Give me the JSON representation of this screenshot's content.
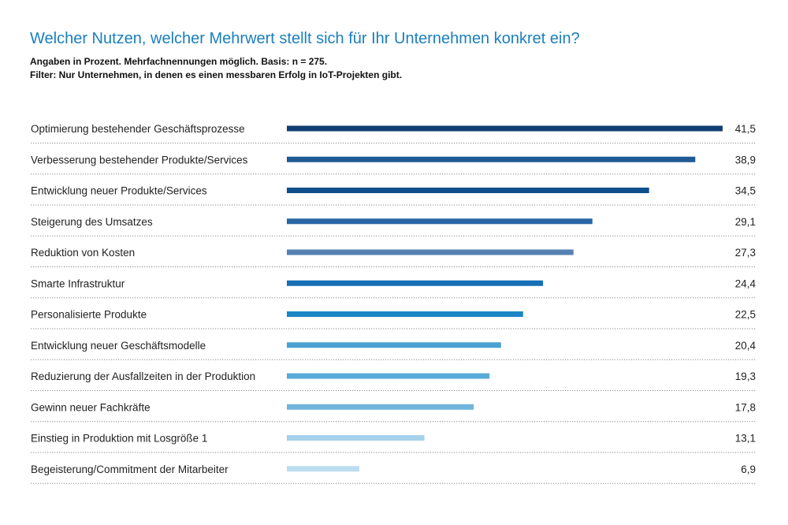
{
  "header": {
    "title": "Welcher Nutzen, welcher Mehrwert stellt sich für Ihr Unternehmen konkret ein?",
    "subtitle_line1": "Angaben in Prozent. Mehrfachnennungen möglich. Basis: n = 275.",
    "subtitle_line2": "Filter: Nur Unternehmen, in denen es einen messbaren Erfolg in IoT-Projekten gibt."
  },
  "chart_data": {
    "type": "bar",
    "orientation": "horizontal",
    "title": "Welcher Nutzen, welcher Mehrwert stellt sich für Ihr Unternehmen konkret ein?",
    "xlabel": "",
    "ylabel": "",
    "grid": false,
    "categories": [
      "Optimierung bestehender Geschäftsprozesse",
      "Verbesserung bestehender Produkte/Services",
      "Entwicklung neuer Produkte/Services",
      "Steigerung des Umsatzes",
      "Reduktion von Kosten",
      "Smarte Infrastruktur",
      "Personalisierte Produkte",
      "Entwicklung neuer Geschäftsmodelle",
      "Reduzierung der Ausfallzeiten in der Produktion",
      "Gewinn neuer Fachkräfte",
      "Einstieg in Produktion mit Losgröße 1",
      "Begeisterung/Commitment der Mitarbeiter"
    ],
    "values": [
      41.5,
      38.9,
      34.5,
      29.1,
      27.3,
      24.4,
      22.5,
      20.4,
      19.3,
      17.8,
      13.1,
      6.9
    ],
    "value_labels": [
      "41,5",
      "38,9",
      "34,5",
      "29,1",
      "27,3",
      "24,4",
      "22,5",
      "20,4",
      "19,3",
      "17,8",
      "13,1",
      "6,9"
    ],
    "colors": [
      "#0f3f73",
      "#1f5a95",
      "#0f4f8c",
      "#2a67a3",
      "#5581b3",
      "#176fb5",
      "#1b86c6",
      "#4aa0d2",
      "#58aad8",
      "#6fb5dd",
      "#a5d0ea",
      "#bcdcef"
    ],
    "xlim": [
      0,
      41.5
    ]
  }
}
